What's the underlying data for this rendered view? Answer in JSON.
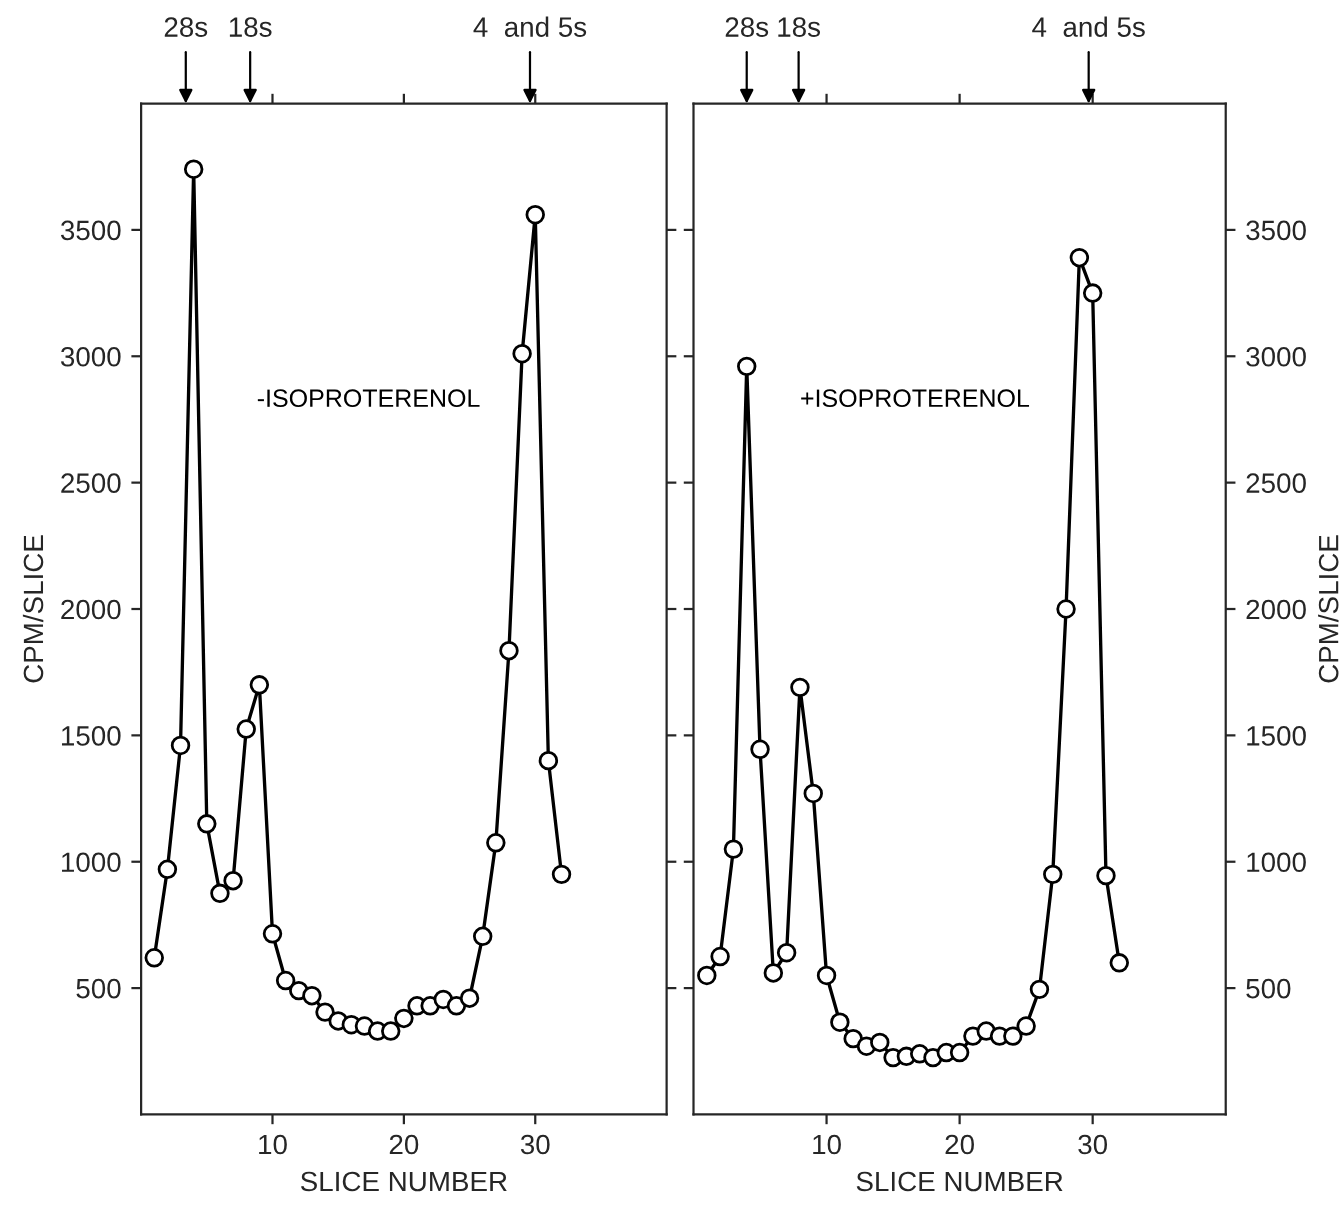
{
  "chart_data": [
    {
      "type": "line",
      "xlabel": "SLICE NUMBER",
      "ylabel": "CPM/SLICE",
      "marker": "circle",
      "line_style": "solid",
      "grid": false,
      "legend": false,
      "xlim": [
        0,
        40
      ],
      "xticks": [
        10,
        20,
        30
      ],
      "ylim": [
        0,
        4000
      ],
      "yticks": [
        500,
        1000,
        1500,
        2000,
        2500,
        3000,
        3500
      ],
      "x": [
        1,
        2,
        3,
        4,
        5,
        6,
        7,
        8,
        9,
        10,
        11,
        12,
        13,
        14,
        15,
        16,
        17,
        18,
        19,
        20,
        21,
        22,
        23,
        24,
        25,
        26,
        27,
        28,
        29,
        30,
        31,
        32
      ],
      "series": [
        {
          "name": "-ISOPROTERENOL",
          "color": "#000000",
          "values": [
            620,
            970,
            1460,
            3740,
            1150,
            875,
            925,
            1525,
            1700,
            715,
            530,
            490,
            470,
            405,
            370,
            355,
            350,
            330,
            330,
            380,
            430,
            430,
            455,
            430,
            460,
            705,
            1075,
            1835,
            3010,
            3560,
            1400,
            950
          ]
        }
      ],
      "annotations": [
        "28s",
        "18s",
        "4  and 5s"
      ]
    },
    {
      "type": "line",
      "xlabel": "SLICE NUMBER",
      "ylabel": "CPM/SLICE",
      "marker": "circle",
      "line_style": "solid",
      "grid": false,
      "legend": false,
      "xlim": [
        0,
        40
      ],
      "xticks": [
        10,
        20,
        30
      ],
      "ylim": [
        0,
        4000
      ],
      "yticks": [
        500,
        1000,
        1500,
        2000,
        2500,
        3000,
        3500
      ],
      "x": [
        1,
        2,
        3,
        4,
        5,
        6,
        7,
        8,
        9,
        10,
        11,
        12,
        13,
        14,
        15,
        16,
        17,
        18,
        19,
        20,
        21,
        22,
        23,
        24,
        25,
        26,
        27,
        28,
        29,
        30,
        31,
        32
      ],
      "series": [
        {
          "name": "+ISOPROTERENOL",
          "color": "#000000",
          "values": [
            550,
            625,
            1050,
            2960,
            1445,
            560,
            640,
            1690,
            1270,
            550,
            365,
            300,
            270,
            285,
            225,
            230,
            240,
            225,
            245,
            245,
            310,
            330,
            310,
            310,
            350,
            495,
            950,
            2000,
            3390,
            3250,
            945,
            600
          ]
        }
      ],
      "annotations": [
        "28s",
        "18s",
        "4  and 5s"
      ]
    }
  ]
}
